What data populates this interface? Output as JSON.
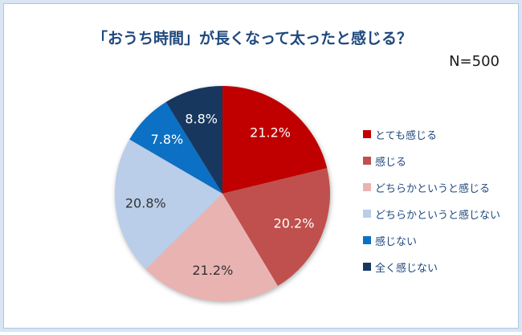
{
  "header": {
    "title": "「おうち時間」が長くなって太ったと感じる？",
    "title_color": "#1F497D",
    "sample_size": "N=500"
  },
  "chart_data": {
    "type": "pie",
    "title": "「おうち時間」が長くなって太ったと感じる？",
    "sample_size": "N=500",
    "categories": [
      "とても感じる",
      "感じる",
      "どちらかというと感じる",
      "どちらかというと感じない",
      "感じない",
      "全く感じない"
    ],
    "values": [
      21.2,
      20.2,
      21.2,
      20.8,
      7.8,
      8.8
    ],
    "labels": [
      "21.2%",
      "20.2%",
      "21.2%",
      "20.8%",
      "7.8%",
      "8.8%"
    ],
    "colors": [
      "#C00000",
      "#C0504D",
      "#E9B3B2",
      "#BACDE9",
      "#0C70C4",
      "#17375E"
    ],
    "label_colors": [
      "#FFFFFF",
      "#FFFFFF",
      "#333333",
      "#333333",
      "#FFFFFF",
      "#FFFFFF"
    ],
    "start_angle_deg": 0,
    "direction": "clockwise",
    "legend_position": "right",
    "legend_text_color": "#1F497D"
  }
}
